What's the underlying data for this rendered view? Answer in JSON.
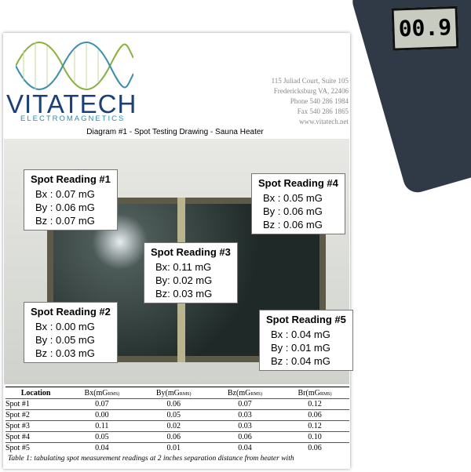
{
  "header": {
    "brand": "VITATECH",
    "tagline": "ELECTROMAGNETICS",
    "address": [
      "115 Juliad Court, Suite 105",
      "Fredericksburg VA, 22406",
      "Phone 540 286 1984",
      "Fax 540 286 1865",
      "www.vitatech.net"
    ]
  },
  "diagram": {
    "title": "Diagram #1 - Spot Testing Drawing - Sauna Heater",
    "spots": [
      {
        "title": "Spot Reading #1",
        "lines": [
          "Bx : 0.07 mG",
          "By : 0.06 mG",
          "Bz : 0.07 mG"
        ]
      },
      {
        "title": "Spot Reading #2",
        "lines": [
          "Bx : 0.00 mG",
          "By : 0.05 mG",
          "Bz : 0.03 mG"
        ]
      },
      {
        "title": "Spot Reading #3",
        "lines": [
          "Bx: 0.11 mG",
          "By:  0.02 mG",
          "Bz:  0.03 mG"
        ]
      },
      {
        "title": "Spot Reading #4",
        "lines": [
          "Bx : 0.05 mG",
          "By : 0.06 mG",
          "Bz : 0.06 mG"
        ]
      },
      {
        "title": "Spot Reading #5",
        "lines": [
          "Bx : 0.04 mG",
          "By : 0.01 mG",
          "Bz : 0.04 mG"
        ]
      }
    ]
  },
  "meter": {
    "display": "00.9"
  },
  "table": {
    "header": [
      {
        "main": "Location"
      },
      {
        "main": "Bx(mG",
        "sub": "RMS)"
      },
      {
        "main": "By(mG",
        "sub": "RMS)"
      },
      {
        "main": "Bz(mG",
        "sub": "RMS)"
      },
      {
        "main": "Br(mG",
        "sub": "RMS)"
      }
    ],
    "rows": [
      [
        "Spot #1",
        "0.07",
        "0.06",
        "0.07",
        "0.12"
      ],
      [
        "Spot #2",
        "0.00",
        "0.05",
        "0.03",
        "0.06"
      ],
      [
        "Spot #3",
        "0.11",
        "0.02",
        "0.03",
        "0.12"
      ],
      [
        "Spot #4",
        "0.05",
        "0.06",
        "0.06",
        "0.10"
      ],
      [
        "Spot #5",
        "0.04",
        "0.01",
        "0.04",
        "0.06"
      ]
    ],
    "caption": "Table 1: tabulating spot measurement readings at 2 inches separation distance from heater with"
  }
}
